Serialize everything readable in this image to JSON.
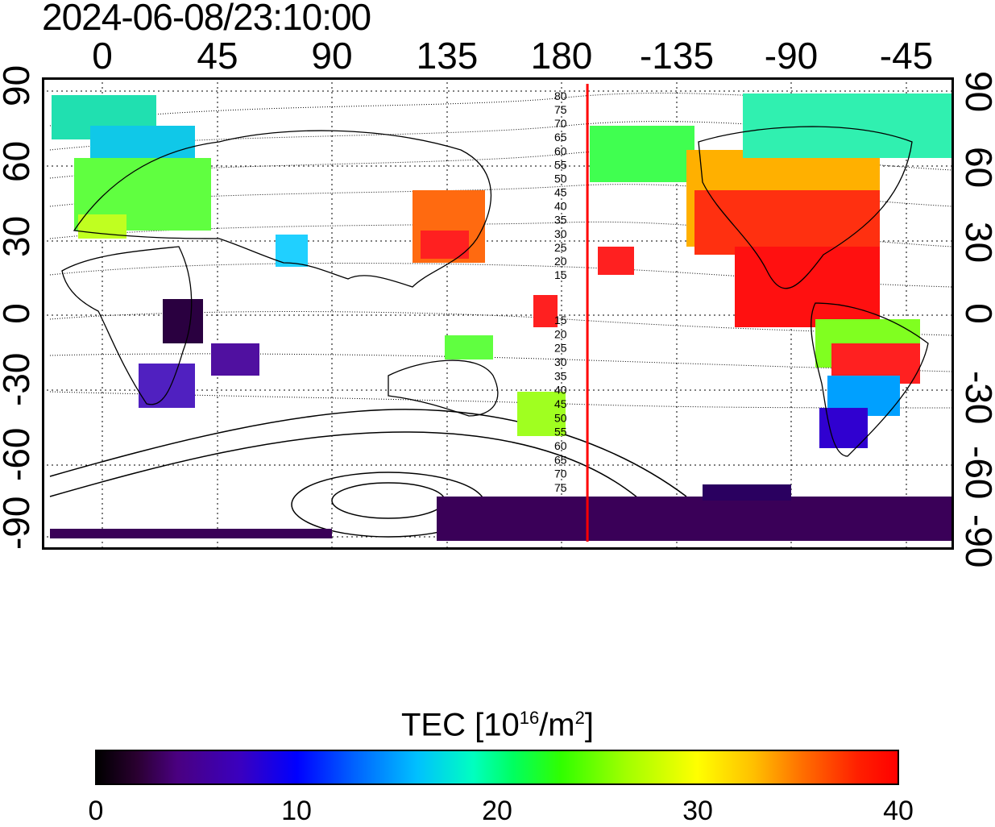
{
  "timestamp": "2024-06-08/23:10:00",
  "x_ticks": [
    "0",
    "45",
    "90",
    "135",
    "180",
    "-135",
    "-90",
    "-45"
  ],
  "y_ticks_left": [
    "90",
    "60",
    "30",
    "0",
    "-30",
    "-60",
    "-90"
  ],
  "y_ticks_right": [
    "90",
    "60",
    "30",
    "0",
    "-30",
    "-60",
    "-90"
  ],
  "contour_labels_north": [
    "80",
    "75",
    "70",
    "65",
    "60",
    "55",
    "50",
    "45",
    "40",
    "35",
    "30",
    "25",
    "20",
    "15"
  ],
  "contour_labels_south": [
    "15",
    "20",
    "25",
    "30",
    "35",
    "40",
    "45",
    "50",
    "55",
    "60",
    "65",
    "70",
    "75"
  ],
  "marker_longitude": -170,
  "colorbar": {
    "title_main": "TEC  [10",
    "title_exp": "16",
    "title_unit": "/m",
    "title_unit_exp": "2",
    "title_close": "]",
    "tick_labels": [
      "0",
      "10",
      "20",
      "30",
      "40"
    ],
    "min": 0,
    "max": 40
  },
  "colors": {
    "marker_line": "#ff0000",
    "frame": "#000000"
  }
}
